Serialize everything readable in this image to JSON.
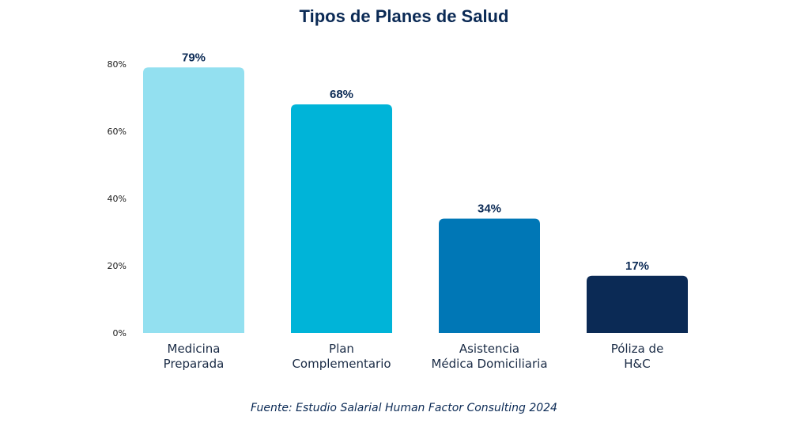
{
  "chart_data": {
    "type": "bar",
    "title": "Tipos de Planes de Salud",
    "categories": [
      [
        "Medicina",
        "Preparada"
      ],
      [
        "Plan",
        "Complementario"
      ],
      [
        "Asistencia",
        "Médica Domiciliaria"
      ],
      [
        "Póliza de",
        "H&C"
      ]
    ],
    "values": [
      79,
      68,
      34,
      17
    ],
    "value_labels": [
      "79%",
      "68%",
      "34%",
      "17%"
    ],
    "bar_colors": [
      "#93e0f0",
      "#00b4d8",
      "#0077b6",
      "#0b2a55"
    ],
    "yticks": [
      0,
      20,
      40,
      60,
      80
    ],
    "ytick_labels": [
      "0%",
      "20%",
      "40%",
      "60%",
      "80%"
    ],
    "ylim": [
      0,
      80
    ],
    "grid": false,
    "legend": "none",
    "source": "Fuente: Estudio Salarial Human Factor Consulting 2024"
  }
}
